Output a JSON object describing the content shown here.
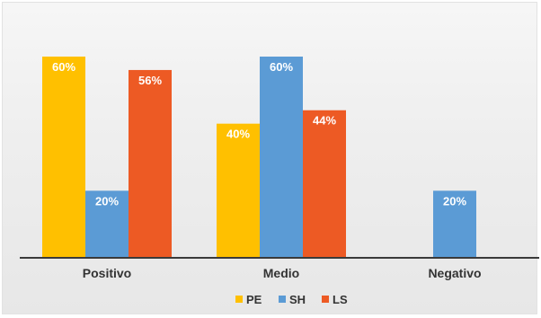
{
  "chart_data": {
    "type": "bar",
    "categories": [
      "Positivo",
      "Medio",
      "Negativo"
    ],
    "series": [
      {
        "name": "PE",
        "color": "#ffc000",
        "values": [
          60,
          40,
          0
        ],
        "labels": [
          "60%",
          "40%",
          ""
        ]
      },
      {
        "name": "SH",
        "color": "#5b9bd5",
        "values": [
          20,
          60,
          20
        ],
        "labels": [
          "20%",
          "60%",
          "20%"
        ]
      },
      {
        "name": "LS",
        "color": "#ed5a24",
        "values": [
          56,
          44,
          0
        ],
        "labels": [
          "56%",
          "44%",
          ""
        ]
      }
    ],
    "ylim": [
      0,
      60
    ],
    "grid": false,
    "legend_position": "bottom",
    "value_unit": "%"
  }
}
